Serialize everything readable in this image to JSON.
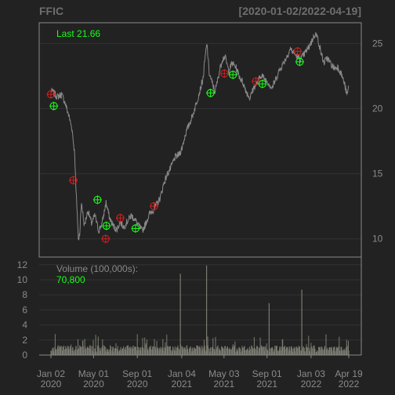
{
  "header": {
    "symbol": "FFIC",
    "date_range": "[2020-01-02/2022-04-19]"
  },
  "colors": {
    "background": "#222222",
    "frame": "#8a8a8a",
    "grid": "#333333",
    "price_line": "#8a8a8a",
    "up_marker": "#1aff1a",
    "down_marker": "#cc2222",
    "volume": "#7a7a70",
    "accent_text": "#1aff1a"
  },
  "chart_data": [
    {
      "type": "line",
      "panel": "price",
      "legend": "Last 21.66",
      "ylim": [
        8.6,
        26.6
      ],
      "y_ticks": [
        10,
        15,
        20,
        25
      ],
      "grid": true,
      "series": [
        {
          "points": [
            [
              "2020-01-02",
              21.4
            ],
            [
              "2020-01-10",
              21.2
            ],
            [
              "2020-01-20",
              20.9
            ],
            [
              "2020-02-01",
              21.1
            ],
            [
              "2020-02-10",
              20.5
            ],
            [
              "2020-02-20",
              19.6
            ],
            [
              "2020-03-01",
              18.5
            ],
            [
              "2020-03-09",
              16.5
            ],
            [
              "2020-03-12",
              14.0
            ],
            [
              "2020-03-16",
              12.0
            ],
            [
              "2020-03-19",
              9.9
            ],
            [
              "2020-03-23",
              10.5
            ],
            [
              "2020-03-28",
              12.8
            ],
            [
              "2020-04-05",
              11.0
            ],
            [
              "2020-04-15",
              12.2
            ],
            [
              "2020-04-25",
              11.2
            ],
            [
              "2020-05-05",
              11.8
            ],
            [
              "2020-05-15",
              10.6
            ],
            [
              "2020-05-25",
              11.2
            ],
            [
              "2020-06-05",
              12.8
            ],
            [
              "2020-06-15",
              11.6
            ],
            [
              "2020-06-25",
              11.0
            ],
            [
              "2020-07-05",
              10.7
            ],
            [
              "2020-07-15",
              11.3
            ],
            [
              "2020-07-25",
              10.9
            ],
            [
              "2020-08-05",
              11.4
            ],
            [
              "2020-08-15",
              11.8
            ],
            [
              "2020-08-25",
              11.5
            ],
            [
              "2020-09-05",
              11.0
            ],
            [
              "2020-09-15",
              10.6
            ],
            [
              "2020-09-25",
              11.2
            ],
            [
              "2020-10-05",
              11.9
            ],
            [
              "2020-10-15",
              12.2
            ],
            [
              "2020-10-25",
              12.6
            ],
            [
              "2020-11-05",
              13.2
            ],
            [
              "2020-11-15",
              14.3
            ],
            [
              "2020-11-25",
              15.0
            ],
            [
              "2020-12-05",
              15.5
            ],
            [
              "2020-12-15",
              16.2
            ],
            [
              "2020-12-28",
              16.5
            ],
            [
              "2021-01-05",
              17.0
            ],
            [
              "2021-01-15",
              18.1
            ],
            [
              "2021-01-25",
              18.8
            ],
            [
              "2021-02-05",
              19.6
            ],
            [
              "2021-02-15",
              20.5
            ],
            [
              "2021-02-25",
              21.5
            ],
            [
              "2021-03-05",
              22.3
            ],
            [
              "2021-03-12",
              24.2
            ],
            [
              "2021-03-16",
              25.0
            ],
            [
              "2021-03-22",
              22.8
            ],
            [
              "2021-03-30",
              22.0
            ],
            [
              "2021-04-08",
              21.3
            ],
            [
              "2021-04-18",
              22.6
            ],
            [
              "2021-04-28",
              23.8
            ],
            [
              "2021-05-06",
              24.0
            ],
            [
              "2021-05-16",
              22.9
            ],
            [
              "2021-05-26",
              23.5
            ],
            [
              "2021-06-05",
              23.2
            ],
            [
              "2021-06-15",
              22.5
            ],
            [
              "2021-06-25",
              22.0
            ],
            [
              "2021-07-05",
              21.3
            ],
            [
              "2021-07-15",
              20.8
            ],
            [
              "2021-07-25",
              21.6
            ],
            [
              "2021-08-05",
              22.0
            ],
            [
              "2021-08-15",
              22.6
            ],
            [
              "2021-08-25",
              22.3
            ],
            [
              "2021-09-05",
              22.0
            ],
            [
              "2021-09-15",
              21.6
            ],
            [
              "2021-09-25",
              22.2
            ],
            [
              "2021-10-05",
              22.9
            ],
            [
              "2021-10-15",
              23.4
            ],
            [
              "2021-10-25",
              23.9
            ],
            [
              "2021-11-05",
              24.6
            ],
            [
              "2021-11-15",
              24.3
            ],
            [
              "2021-11-25",
              24.0
            ],
            [
              "2021-12-05",
              23.8
            ],
            [
              "2021-12-15",
              24.2
            ],
            [
              "2021-12-25",
              24.6
            ],
            [
              "2022-01-05",
              25.2
            ],
            [
              "2022-01-15",
              25.8
            ],
            [
              "2022-01-22",
              25.4
            ],
            [
              "2022-01-30",
              24.4
            ],
            [
              "2022-02-08",
              23.5
            ],
            [
              "2022-02-18",
              23.9
            ],
            [
              "2022-02-28",
              23.4
            ],
            [
              "2022-03-10",
              23.1
            ],
            [
              "2022-03-20",
              23.2
            ],
            [
              "2022-03-30",
              22.6
            ],
            [
              "2022-04-08",
              21.8
            ],
            [
              "2022-04-14",
              21.0
            ],
            [
              "2022-04-19",
              21.66
            ]
          ]
        }
      ],
      "markers": [
        {
          "date": "2020-01-02",
          "value": 21.1,
          "type": "sell"
        },
        {
          "date": "2020-01-10",
          "value": 20.2,
          "type": "buy"
        },
        {
          "date": "2020-03-05",
          "value": 14.5,
          "type": "sell"
        },
        {
          "date": "2020-05-12",
          "value": 13.0,
          "type": "buy"
        },
        {
          "date": "2020-06-04",
          "value": 10.0,
          "type": "sell"
        },
        {
          "date": "2020-06-06",
          "value": 11.0,
          "type": "buy"
        },
        {
          "date": "2020-07-15",
          "value": 11.6,
          "type": "sell"
        },
        {
          "date": "2020-08-27",
          "value": 10.8,
          "type": "buy"
        },
        {
          "date": "2020-10-18",
          "value": 12.5,
          "type": "sell"
        },
        {
          "date": "2021-03-26",
          "value": 21.2,
          "type": "buy"
        },
        {
          "date": "2021-05-04",
          "value": 22.7,
          "type": "sell"
        },
        {
          "date": "2021-05-28",
          "value": 22.6,
          "type": "buy"
        },
        {
          "date": "2021-08-01",
          "value": 22.1,
          "type": "sell"
        },
        {
          "date": "2021-08-19",
          "value": 21.9,
          "type": "buy"
        },
        {
          "date": "2021-11-26",
          "value": 24.4,
          "type": "sell"
        },
        {
          "date": "2021-12-02",
          "value": 23.6,
          "type": "buy"
        }
      ]
    },
    {
      "type": "bar",
      "panel": "volume",
      "legend_label": "Volume (100,000s):",
      "legend_value": "70,800",
      "ylim": [
        0,
        12.5
      ],
      "y_ticks": [
        0,
        2,
        4,
        6,
        8,
        10,
        12
      ],
      "grid": true,
      "spikes": [
        {
          "date": "2020-12-31",
          "value": 10.8
        },
        {
          "date": "2021-03-15",
          "value": 11.9
        },
        {
          "date": "2021-09-07",
          "value": 6.9
        },
        {
          "date": "2021-12-08",
          "value": 8.7
        }
      ]
    }
  ],
  "x_axis": {
    "start": "2020-01-02",
    "end": "2022-04-19",
    "ticks": [
      {
        "date": "2020-01-02",
        "line1": "Jan 02",
        "line2": "2020"
      },
      {
        "date": "2020-05-01",
        "line1": "May 01",
        "line2": "2020"
      },
      {
        "date": "2020-09-01",
        "line1": "Sep 01",
        "line2": "2020"
      },
      {
        "date": "2021-01-04",
        "line1": "Jan 04",
        "line2": "2021"
      },
      {
        "date": "2021-05-03",
        "line1": "May 03",
        "line2": "2021"
      },
      {
        "date": "2021-09-01",
        "line1": "Sep 01",
        "line2": "2021"
      },
      {
        "date": "2022-01-03",
        "line1": "Jan 03",
        "line2": "2022"
      },
      {
        "date": "2022-04-19",
        "line1": "Apr 19",
        "line2": "2022"
      }
    ]
  }
}
